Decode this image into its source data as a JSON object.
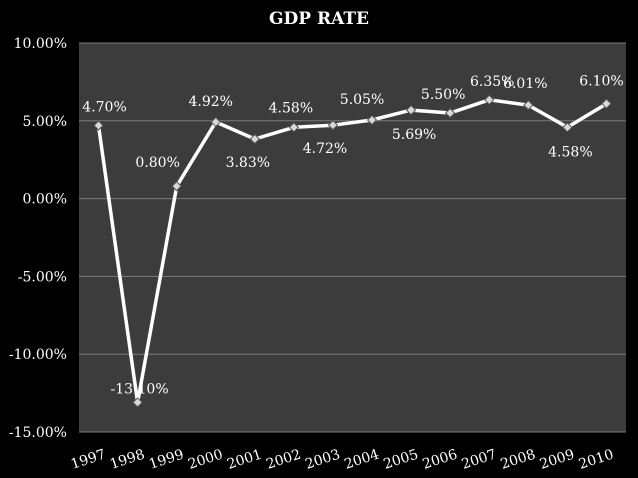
{
  "chart_data": {
    "type": "line",
    "title": "GDP RATE",
    "xlabel": "",
    "ylabel": "",
    "categories": [
      "1997",
      "1998",
      "1999",
      "2000",
      "2001",
      "2002",
      "2003",
      "2004",
      "2005",
      "2006",
      "2007",
      "2008",
      "2009",
      "2010"
    ],
    "values": [
      4.7,
      -13.1,
      0.8,
      4.92,
      3.83,
      4.58,
      4.72,
      5.05,
      5.69,
      5.5,
      6.35,
      6.01,
      4.58,
      6.1
    ],
    "data_labels": [
      "4.70%",
      "-13.10%",
      "0.80%",
      "4.92%",
      "3.83%",
      "4.58%",
      "4.72%",
      "5.05%",
      "5.69%",
      "5.50%",
      "6.35%",
      "6.01%",
      "4.58%",
      "6.10%"
    ],
    "ylim": [
      -15,
      10
    ],
    "yticks": [
      10,
      5,
      0,
      -5,
      -10,
      -15
    ],
    "ytick_labels": [
      "10.00%",
      "5.00%",
      "0.00%",
      "-5.00%",
      "-10.00%",
      "-15.00%"
    ],
    "grid": true,
    "legend": "none",
    "colors": {
      "background": "#000000",
      "plot_area": "#3c3c3c",
      "gridline": "#7a7a7a",
      "line": "#ffffff",
      "marker": "#d8d8d8",
      "text": "#ffffff"
    }
  }
}
